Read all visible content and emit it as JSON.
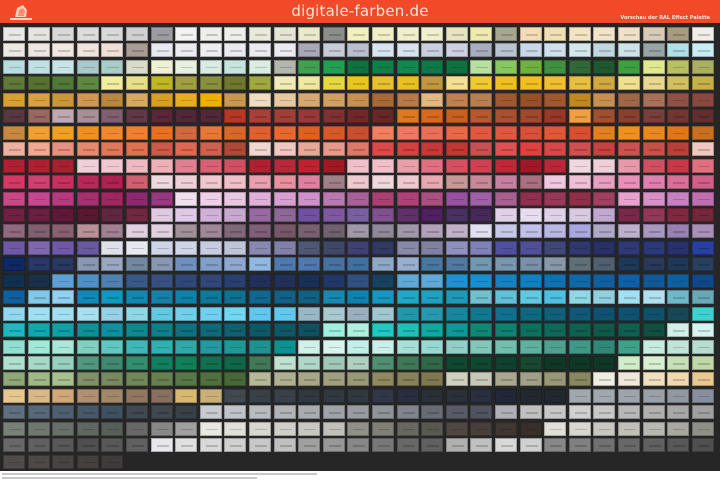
{
  "header": {
    "title": "digitale-farben.de",
    "subtitle": "Vorschau der RAL Effect Palette",
    "background_color": "#f24a28",
    "logo": "digitale-farben logo"
  },
  "palette": {
    "background_color": "#262626",
    "rows": [
      [
        "#e8e8e6",
        "#e6e4e0",
        "#d8d8d6",
        "#dcdcda",
        "#d8dad8",
        "#d0d0d0",
        "#9c9ca2",
        "#f2f2f0",
        "#eeeeea",
        "#eeefe9",
        "#e9e9dc",
        "#e6e4d4",
        "#ebe9cc",
        "#8c8c8a",
        "#f3f0c0",
        "#f2efc8",
        "#f0eecc",
        "#f2efd0",
        "#e8e4c0",
        "#eeeab0",
        "#a8a890",
        "#f4dcb8",
        "#f0e0b4",
        "#f4e4c4",
        "#f2e4c8",
        "#f0e0c8",
        "#d8ccb8",
        "#a89c80",
        "#f2eeea"
      ],
      [
        "#ece8e4",
        "#ece6e0",
        "#f0e8e0",
        "#f0e4dc",
        "#f0e0d8",
        "#a89c94",
        "#e8e8f0",
        "#eaeaf0",
        "#eeeef2",
        "#eaeaf0",
        "#eaeaf0",
        "#eaeaf0",
        "#a8a8b8",
        "#c8ccd8",
        "#b8c0d0",
        "#d8e4f0",
        "#d8e4f0",
        "#c8d0e0",
        "#d0d0e4",
        "#a8acc0",
        "#b8c4d0",
        "#c8d8e8",
        "#d0e0ec",
        "#d4e8ec",
        "#c0d8e0",
        "#cce4e8",
        "#98a4a8",
        "#b0e0e8",
        "#c8eef4"
      ],
      [
        "#b8dce0",
        "#c0e0e4",
        "#c8e4e8",
        "#a8c8cc",
        "#a8ccc8",
        "#d8dcc8",
        "#f0f0d4",
        "#e8f0e0",
        "#d8ece4",
        "#c4e4dc",
        "#d8ece0",
        "#b4b8ac",
        "#40a050",
        "#20a050",
        "#107040",
        "#108048",
        "#108850",
        "#107848",
        "#107040",
        "#b8e0a0",
        "#88c860",
        "#70b040",
        "#409040",
        "#306838",
        "#205830",
        "#40a040",
        "#e0e890",
        "#b8c060",
        "#a8b060"
      ],
      [
        "#607838",
        "#587030",
        "#507838",
        "#608840",
        "#f0eca0",
        "#e8e088",
        "#c0b820",
        "#a0a040",
        "#889040",
        "#707830",
        "#a0a840",
        "#f0ecb8",
        "#f0e8a0",
        "#e8d840",
        "#e8c820",
        "#e8c030",
        "#e8c020",
        "#c09840",
        "#f4e090",
        "#f0c830",
        "#f0c020",
        "#f0c020",
        "#f0c030",
        "#e8c040",
        "#d0a840",
        "#f0e090",
        "#e8d890",
        "#d0c060",
        "#c8b048"
      ],
      [
        "#d8a030",
        "#d8a040",
        "#c89838",
        "#d09850",
        "#b88840",
        "#d8a860",
        "#d8a020",
        "#e8b020",
        "#f0b000",
        "#c89850",
        "#f0dcc0",
        "#e8c8a0",
        "#d8a870",
        "#d0a060",
        "#c89050",
        "#a86838",
        "#b87848",
        "#e0b880",
        "#c08050",
        "#b88050",
        "#a05830",
        "#985028",
        "#a05830",
        "#c08820",
        "#c89050",
        "#a06848",
        "#a87058",
        "#905048",
        "#884840"
      ],
      [
        "#583840",
        "#986860",
        "#c0a8b0",
        "#a89098",
        "#806070",
        "#603848",
        "#582838",
        "#502838",
        "#502838",
        "#b83828",
        "#a84038",
        "#a04038",
        "#983838",
        "#803030",
        "#702828",
        "#682828",
        "#e07820",
        "#d86820",
        "#c86020",
        "#b85830",
        "#a85030",
        "#a04830",
        "#983828",
        "#f0a040",
        "#a05030",
        "#884030",
        "#784038",
        "#703830",
        "#603030"
      ],
      [
        "#c88840",
        "#f0a030",
        "#f0a020",
        "#f09020",
        "#f08830",
        "#f08030",
        "#e87020",
        "#d06840",
        "#e87838",
        "#d86828",
        "#e06030",
        "#e86830",
        "#e06020",
        "#d85828",
        "#c85030",
        "#f08060",
        "#f07860",
        "#e87058",
        "#e86848",
        "#e05840",
        "#e05840",
        "#d85038",
        "#e05838",
        "#d85030",
        "#e08020",
        "#f09020",
        "#e88820",
        "#e07818",
        "#c87020"
      ],
      [
        "#f0b0a0",
        "#f0a890",
        "#e89080",
        "#e88870",
        "#e07858",
        "#e07050",
        "#d05848",
        "#e06850",
        "#d06050",
        "#b04838",
        "#f0d8d0",
        "#f0c8c0",
        "#e8a898",
        "#e89888",
        "#e07868",
        "#e04848",
        "#d84040",
        "#c83838",
        "#c03830",
        "#c85050",
        "#e05050",
        "#e04040",
        "#d84848",
        "#d05050",
        "#c84040",
        "#d05050",
        "#c85048",
        "#b84038",
        "#f0c8c0"
      ],
      [
        "#b02030",
        "#b02030",
        "#a82030",
        "#f0d0d8",
        "#f0c8d0",
        "#f0b8c0",
        "#f0b0b8",
        "#e08090",
        "#d86070",
        "#d05060",
        "#b02030",
        "#b82838",
        "#c02030",
        "#a01820",
        "#f0c0c8",
        "#f0c0c8",
        "#e8a0a8",
        "#e07080",
        "#d85060",
        "#d04050",
        "#c02838",
        "#a01828",
        "#b82838",
        "#f0d8e0",
        "#f0d0d8",
        "#e898a8",
        "#d05060",
        "#c83848",
        "#e07080"
      ],
      [
        "#d83868",
        "#d04070",
        "#c83060",
        "#b82858",
        "#b02050",
        "#d06070",
        "#f0d8e0",
        "#f0d0d8",
        "#f0c8d0",
        "#f0c0c8",
        "#e8a0b0",
        "#e890a0",
        "#e080a0",
        "#a08088",
        "#f0c8d0",
        "#f0d8dc",
        "#f0c8d0",
        "#e8a8b0",
        "#c89898",
        "#c88898",
        "#c880a0",
        "#a87080",
        "#f0c8e0",
        "#f0c0d8",
        "#e8a0c0",
        "#e890b8",
        "#e080b0",
        "#d87098",
        "#d06088"
      ],
      [
        "#c84888",
        "#c84890",
        "#b83880",
        "#a83070",
        "#a02860",
        "#902870",
        "#983880",
        "#f0e0f0",
        "#f0d0e8",
        "#e8c8e0",
        "#e0b0d8",
        "#d8a0d0",
        "#d090c8",
        "#b87ab0",
        "#a86098",
        "#a84070",
        "#b04078",
        "#a85080",
        "#9850a0",
        "#a060a8",
        "#a86090",
        "#903050",
        "#983858",
        "#903048",
        "#a04060",
        "#e8a0d0",
        "#d890c8",
        "#c880c0",
        "#c070b0"
      ],
      [
        "#702040",
        "#682040",
        "#601838",
        "#581830",
        "#602840",
        "#702840",
        "#e0c8e0",
        "#e0c8e8",
        "#d0b0d8",
        "#c8a8d0",
        "#9868a0",
        "#906898",
        "#7050a0",
        "#8058a0",
        "#7860a0",
        "#805090",
        "#603068",
        "#502060",
        "#483060",
        "#482858",
        "#e0d0e8",
        "#e8dcf0",
        "#e0d0e8",
        "#d8c8e0",
        "#c0a8d0",
        "#782848",
        "#903858",
        "#802840",
        "#702838"
      ],
      [
        "#906880",
        "#806070",
        "#886070",
        "#b89098",
        "#a08090",
        "#e0d0e0",
        "#e0d0e0",
        "#a09098",
        "#a08898",
        "#806878",
        "#806078",
        "#785868",
        "#786070",
        "#706070",
        "#a098a8",
        "#908898",
        "#a098a8",
        "#b0a0b8",
        "#c0b0c8",
        "#e0e0f0",
        "#c8c8e8",
        "#c0c0e8",
        "#b8b8e0",
        "#a8a8e0",
        "#b0a8c8",
        "#c0b0d0",
        "#a898c0",
        "#9880b0",
        "#a890b8"
      ],
      [
        "#7058a8",
        "#8068b0",
        "#7058a8",
        "#6858a0",
        "#e0e0ec",
        "#e8e8f0",
        "#d0d4e8",
        "#d0d4e8",
        "#c8cce0",
        "#c0c4d8",
        "#8888b0",
        "#8080a8",
        "#505878",
        "#404868",
        "#404070",
        "#303a60",
        "#8888a8",
        "#8080a0",
        "#9090c0",
        "#8080b8",
        "#5050a0",
        "#505098",
        "#404878",
        "#303870",
        "#283068",
        "#303878",
        "#283878",
        "#283070",
        "#2840a0"
      ],
      [
        "#102868",
        "#283868",
        "#283860",
        "#8898b0",
        "#98a8c0",
        "#7088a0",
        "#8898b0",
        "#7090c0",
        "#80a0c8",
        "#90a8d0",
        "#90b8e0",
        "#5078b0",
        "#5078b0",
        "#4870a0",
        "#4070a0",
        "#90a8c8",
        "#98b0d0",
        "#4878a0",
        "#5078a0",
        "#7098b0",
        "#7898b0",
        "#7890a8",
        "#8898a8",
        "#607078",
        "#506070",
        "#203858",
        "#283858",
        "#203858",
        "#284060"
      ],
      [
        "#103050",
        "#183048",
        "#60a0d8",
        "#5090c8",
        "#5080b0",
        "#385888",
        "#385080",
        "#304878",
        "#304878",
        "#284070",
        "#203058",
        "#203058",
        "#183058",
        "#203868",
        "#305080",
        "#184060",
        "#60a8d8",
        "#60a8d8",
        "#2090d0",
        "#1890d0",
        "#1880c0",
        "#1080c0",
        "#1070b0",
        "#1068a8",
        "#1060a0",
        "#1060a8",
        "#105898",
        "#1060a0",
        "#104888"
      ],
      [
        "#1060a0",
        "#80c8e8",
        "#90d0f0",
        "#1088b8",
        "#1098c0",
        "#1088b0",
        "#1880a8",
        "#1080a8",
        "#107898",
        "#107090",
        "#106890",
        "#106088",
        "#106080",
        "#1888b0",
        "#1080b0",
        "#1898c0",
        "#20a8c8",
        "#20a0c0",
        "#2098b8",
        "#70c0d0",
        "#60c0d8",
        "#60c8e0",
        "#50c0e0",
        "#90d8e8",
        "#90d0e0",
        "#a0e0f0",
        "#b0e0f0",
        "#70b8c8",
        "#68a8b8"
      ],
      [
        "#90d8f0",
        "#a0e0f0",
        "#a0e0f0",
        "#a8e0f0",
        "#98d0e8",
        "#90d8e8",
        "#60c8e0",
        "#70d0e8",
        "#70d0f0",
        "#70d8f0",
        "#60c8f0",
        "#60c8f0",
        "#98b8c8",
        "#a8c8d0",
        "#98b0c0",
        "#a0c8d0",
        "#2098a8",
        "#2898b0",
        "#1888a0",
        "#107890",
        "#107090",
        "#106880",
        "#106078",
        "#105878",
        "#105070",
        "#105070",
        "#105068",
        "#184858",
        "#40d0d0"
      ],
      [
        "#20b8c0",
        "#10a8b0",
        "#10a0a8",
        "#109098",
        "#1090a0",
        "#108890",
        "#108088",
        "#107080",
        "#106878",
        "#106070",
        "#105868",
        "#105868",
        "#105060",
        "#a0f0e0",
        "#b0f0e0",
        "#20c8c0",
        "#20c0b8",
        "#10a8a0",
        "#109898",
        "#108878",
        "#108070",
        "#107060",
        "#106858",
        "#106050",
        "#105848",
        "#106050",
        "#105040",
        "#d0f0e8",
        "#d8f4f0"
      ],
      [
        "#90e0d0",
        "#a0e8d8",
        "#a8e8d8",
        "#80d0c0",
        "#60c8c0",
        "#40b8b8",
        "#30b0b0",
        "#30a8a8",
        "#2898a0",
        "#209898",
        "#209090",
        "#109090",
        "#d0f0e8",
        "#d8f4ec",
        "#c0f0e8",
        "#c8f0e8",
        "#a8e0d8",
        "#98d8d0",
        "#90d0c8",
        "#80c8b8",
        "#70c0b0",
        "#60b0a0",
        "#50a090",
        "#409888",
        "#308878",
        "#40a088",
        "#c8ece0",
        "#c0e4d8",
        "#b8dcd0"
      ],
      [
        "#b0e0d0",
        "#a8d8c8",
        "#98d0c0",
        "#509880",
        "#408870",
        "#309070",
        "#108060",
        "#108058",
        "#107050",
        "#106848",
        "#407858",
        "#c0e0d0",
        "#b0d8c8",
        "#a0c8b8",
        "#b0d0c0",
        "#509070",
        "#407858",
        "#306848",
        "#104830",
        "#104830",
        "#104030",
        "#184830",
        "#103828",
        "#103828",
        "#103828",
        "#d0ecc8",
        "#d8f0d0",
        "#c8e0b8",
        "#c0d8a8"
      ],
      [
        "#90a878",
        "#a0b888",
        "#a8c090",
        "#809068",
        "#788860",
        "#708858",
        "#688050",
        "#587848",
        "#507040",
        "#486838",
        "#b8b898",
        "#b0b090",
        "#a8a888",
        "#a0a080",
        "#989878",
        "#908860",
        "#888058",
        "#807850",
        "#d0d0c0",
        "#c8c8b8",
        "#a8a890",
        "#a0a088",
        "#989878",
        "#888860",
        "#f0eee0",
        "#f0e8d8",
        "#f0e0c0",
        "#f0d8b0",
        "#e8c890"
      ],
      [
        "#e8c890",
        "#d8b888",
        "#d0a878",
        "#b09070",
        "#a08868",
        "#907860",
        "#887060",
        "#d8b870",
        "#c8b078",
        "#404850",
        "#384048",
        "#384048",
        "#303840",
        "#303840",
        "#303840",
        "#303848",
        "#283040",
        "#283038",
        "#283038",
        "#283040",
        "#202838",
        "#202830",
        "#202830",
        "#a0a8b0",
        "#a0a8b0",
        "#9ca4ac",
        "#98a0a8",
        "#9098a0",
        "#8890a0"
      ],
      [
        "#607080",
        "#586878",
        "#506070",
        "#485868",
        "#405060",
        "#404850",
        "#404850",
        "#384048",
        "#c8ccd0",
        "#c0c4c8",
        "#b8bcc0",
        "#b0b4b8",
        "#a8acb0",
        "#a0a4a8",
        "#989ca0",
        "#909498",
        "#80848c",
        "#686c74",
        "#585c68",
        "#505460",
        "#b0b0b8",
        "#c0c0c0",
        "#c8c8c8",
        "#d0d0d0",
        "#c8c8c8",
        "#b8b8b8",
        "#b0b0b0",
        "#a8a8a8",
        "#a0a0a0"
      ],
      [
        "#788078",
        "#707870",
        "#686e68",
        "#606660",
        "#585e58",
        "#686868",
        "#888888",
        "#a0a0a0",
        "#e8e8e0",
        "#e0e0d8",
        "#d8d8d0",
        "#d0d0c8",
        "#c8c8c0",
        "#c0c0b8",
        "#909088",
        "#808078",
        "#686860",
        "#585850",
        "#504840",
        "#484038",
        "#403830",
        "#383028",
        "#e0e0d8",
        "#d8d8d0",
        "#c8c8c0",
        "#c0c0b8",
        "#b8b8b0",
        "#a8a8a0",
        "#909088"
      ],
      [
        "#686868",
        "#606060",
        "#585858",
        "#505050",
        "#585858",
        "#606060",
        "#e8e8ec",
        "#e0e0e0",
        "#d8d8d8",
        "#d0d0d0",
        "#c8c8c8",
        "#c0c0c0",
        "#a0a0a0",
        "#989898",
        "#888888",
        "#787878",
        "#686868",
        "#606060",
        "#b0b0b0",
        "#c0c0c0",
        "#d8d8d8",
        "#d0d0d0",
        "#888888",
        "#808080",
        "#707070",
        "#686868",
        "#606060",
        "#585858",
        "#505050"
      ],
      [
        "#504c4c",
        "#4c4848",
        "#484444",
        "#444040",
        "#403c3c"
      ]
    ]
  }
}
